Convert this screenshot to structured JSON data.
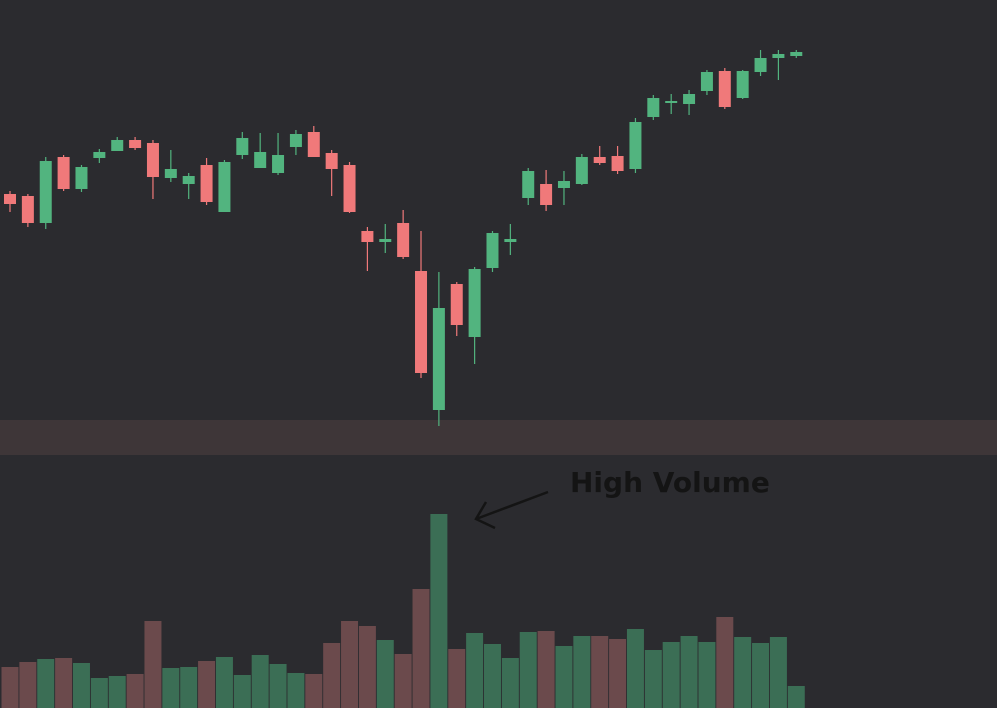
{
  "chart_data": {
    "type": "candlestick",
    "annotation": "High Volume",
    "up_color": "#52b47f",
    "down_color": "#f0797a",
    "volume_up_color": "#3b6e55",
    "volume_down_color": "#6b4a4c",
    "open": [
      266,
      264,
      237,
      303,
      271,
      302,
      309,
      320,
      317,
      282,
      276,
      295,
      248,
      305,
      292,
      287,
      313,
      328,
      307,
      295,
      229,
      218,
      237,
      189,
      50,
      176,
      123,
      192,
      218,
      262,
      276,
      272,
      276,
      303,
      304,
      291,
      343,
      357,
      356,
      369,
      389,
      362,
      388,
      402,
      404
    ],
    "high": [
      269,
      266,
      303,
      305,
      295,
      311,
      323,
      323,
      320,
      310,
      287,
      302,
      300,
      328,
      327,
      327,
      330,
      334,
      310,
      298,
      233,
      236,
      250,
      229,
      188,
      178,
      193,
      229,
      236,
      292,
      290,
      289,
      306,
      314,
      314,
      342,
      365,
      366,
      370,
      390,
      392,
      390,
      410,
      410,
      410
    ],
    "low": [
      248,
      233,
      231,
      269,
      268,
      297,
      309,
      310,
      261,
      278,
      261,
      255,
      248,
      301,
      292,
      285,
      305,
      303,
      264,
      247,
      189,
      207,
      201,
      82,
      34,
      124,
      96,
      188,
      205,
      255,
      249,
      255,
      275,
      295,
      286,
      287,
      340,
      346,
      345,
      365,
      351,
      361,
      384,
      380,
      402
    ],
    "close": [
      256,
      237,
      299,
      271,
      293,
      308,
      320,
      312,
      283,
      291,
      284,
      258,
      298,
      322,
      308,
      305,
      326,
      303,
      291,
      248,
      218,
      221,
      203,
      87,
      152,
      135,
      191,
      227,
      221,
      289,
      255,
      279,
      303,
      297,
      289,
      338,
      362,
      359,
      366,
      388,
      353,
      389,
      402,
      406,
      408
    ],
    "volume": [
      41,
      46,
      49,
      50,
      45,
      30,
      32,
      34,
      87,
      40,
      41,
      47,
      51,
      33,
      53,
      44,
      35,
      34,
      65,
      87,
      82,
      68,
      54,
      119,
      194,
      59,
      75,
      64,
      50,
      76,
      77,
      62,
      72,
      72,
      69,
      79,
      58,
      66,
      72,
      66,
      91,
      71,
      65,
      71,
      22
    ]
  }
}
